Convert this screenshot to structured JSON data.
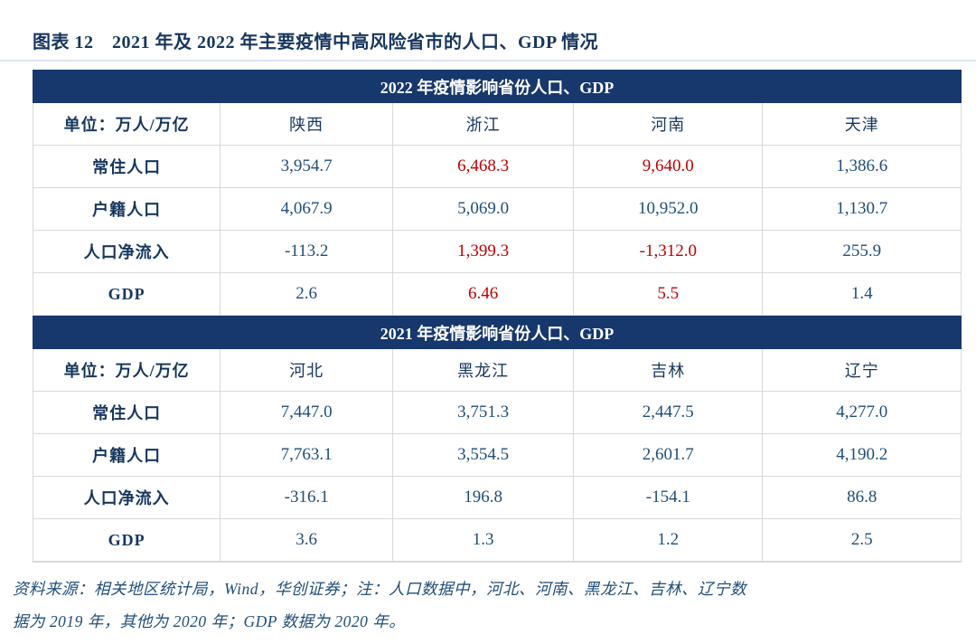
{
  "title": "图表 12　2021 年及 2022 年主要疫情中高风险省市的人口、GDP 情况",
  "colors": {
    "band_background": "#16386C",
    "band_text": "#FFFFFF",
    "label_text": "#17375E",
    "value_text": "#1F4E79",
    "highlight_red": "#C00000",
    "gridline": "#D9D9D9"
  },
  "tables": [
    {
      "header": "2022 年疫情影响省份人口、GDP",
      "unit_label": "单位：万人/万亿",
      "columns": [
        "陕西",
        "浙江",
        "河南",
        "天津"
      ],
      "rows": [
        {
          "label": "常住人口",
          "values": [
            "3,954.7",
            "6,468.3",
            "9,640.0",
            "1,386.6"
          ],
          "red": [
            false,
            true,
            true,
            false
          ]
        },
        {
          "label": "户籍人口",
          "values": [
            "4,067.9",
            "5,069.0",
            "10,952.0",
            "1,130.7"
          ],
          "red": [
            false,
            false,
            false,
            false
          ]
        },
        {
          "label": "人口净流入",
          "values": [
            "-113.2",
            "1,399.3",
            "-1,312.0",
            "255.9"
          ],
          "red": [
            false,
            true,
            true,
            false
          ]
        },
        {
          "label": "GDP",
          "values": [
            "2.6",
            "6.46",
            "5.5",
            "1.4"
          ],
          "red": [
            false,
            true,
            true,
            false
          ]
        }
      ]
    },
    {
      "header": "2021 年疫情影响省份人口、GDP",
      "unit_label": "单位：万人/万亿",
      "columns": [
        "河北",
        "黑龙江",
        "吉林",
        "辽宁"
      ],
      "rows": [
        {
          "label": "常住人口",
          "values": [
            "7,447.0",
            "3,751.3",
            "2,447.5",
            "4,277.0"
          ],
          "red": [
            false,
            false,
            false,
            false
          ]
        },
        {
          "label": "户籍人口",
          "values": [
            "7,763.1",
            "3,554.5",
            "2,601.7",
            "4,190.2"
          ],
          "red": [
            false,
            false,
            false,
            false
          ]
        },
        {
          "label": "人口净流入",
          "values": [
            "-316.1",
            "196.8",
            "-154.1",
            "86.8"
          ],
          "red": [
            false,
            false,
            false,
            false
          ]
        },
        {
          "label": "GDP",
          "values": [
            "3.6",
            "1.3",
            "1.2",
            "2.5"
          ],
          "red": [
            false,
            false,
            false,
            false
          ]
        }
      ]
    }
  ],
  "footer": {
    "line1": "资料来源：相关地区统计局，Wind，华创证券；注：人口数据中，河北、河南、黑龙江、吉林、辽宁数",
    "line2": "据为 2019 年，其他为 2020 年；GDP 数据为 2020 年。"
  }
}
